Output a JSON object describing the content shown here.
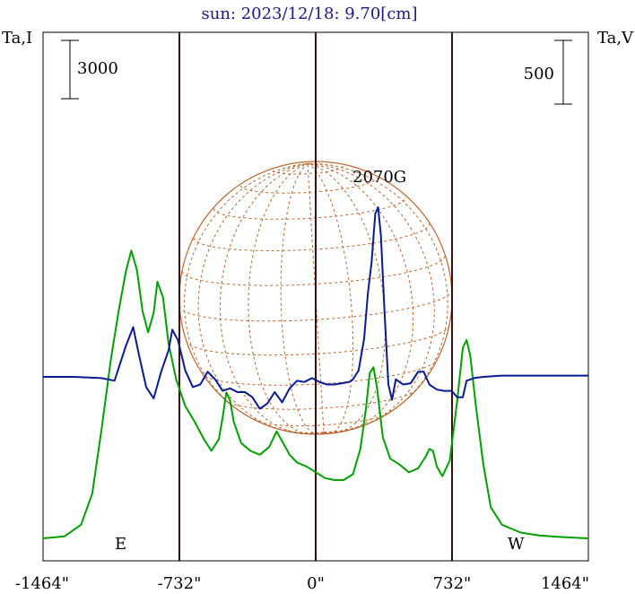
{
  "chart_data": {
    "type": "line",
    "title": "sun: 2023/12/18: 9.70[cm]",
    "ylabel_left": "Ta,I",
    "ylabel_right": "Ta,V",
    "scale_left": "3000",
    "scale_right": "500",
    "xlim": [
      -1464,
      1464
    ],
    "x_ticks": [
      -1464,
      -732,
      0,
      732,
      1464
    ],
    "x_tick_labels": [
      "-1464\"",
      "-732\"",
      "0\"",
      "732\"",
      "1464\""
    ],
    "vlines": [
      -1464,
      -732,
      0,
      732,
      1464
    ],
    "edge_labels": {
      "east": "E",
      "west": "W"
    },
    "annotation": {
      "text": "2070G",
      "x": 520
    },
    "disk": {
      "center_x": 0,
      "radius": 732
    },
    "series": [
      {
        "color": "#00a000",
        "axis": "left",
        "values": [
          [
            -1464,
            0
          ],
          [
            -1350,
            100
          ],
          [
            -1260,
            700
          ],
          [
            -1200,
            2300
          ],
          [
            -1150,
            5600
          ],
          [
            -1100,
            9200
          ],
          [
            -1060,
            11600
          ],
          [
            -1020,
            13700
          ],
          [
            -990,
            14800
          ],
          [
            -960,
            13800
          ],
          [
            -930,
            11700
          ],
          [
            -900,
            10600
          ],
          [
            -870,
            11600
          ],
          [
            -850,
            13200
          ],
          [
            -820,
            12400
          ],
          [
            -790,
            10000
          ],
          [
            -750,
            8200
          ],
          [
            -700,
            6800
          ],
          [
            -650,
            6000
          ],
          [
            -600,
            5100
          ],
          [
            -560,
            4500
          ],
          [
            -520,
            5100
          ],
          [
            -500,
            6200
          ],
          [
            -480,
            7500
          ],
          [
            -460,
            7100
          ],
          [
            -440,
            6000
          ],
          [
            -400,
            4900
          ],
          [
            -350,
            4500
          ],
          [
            -300,
            4300
          ],
          [
            -250,
            4700
          ],
          [
            -210,
            5500
          ],
          [
            -180,
            5000
          ],
          [
            -140,
            4300
          ],
          [
            -100,
            3900
          ],
          [
            -50,
            3700
          ],
          [
            0,
            3400
          ],
          [
            50,
            3100
          ],
          [
            100,
            3000
          ],
          [
            150,
            3000
          ],
          [
            200,
            3300
          ],
          [
            240,
            4600
          ],
          [
            270,
            6700
          ],
          [
            290,
            8500
          ],
          [
            310,
            8800
          ],
          [
            330,
            7700
          ],
          [
            360,
            5200
          ],
          [
            400,
            4100
          ],
          [
            450,
            3800
          ],
          [
            500,
            3400
          ],
          [
            550,
            3600
          ],
          [
            590,
            4200
          ],
          [
            610,
            4600
          ],
          [
            630,
            4500
          ],
          [
            650,
            3700
          ],
          [
            680,
            3200
          ],
          [
            720,
            4000
          ],
          [
            760,
            7100
          ],
          [
            790,
            9800
          ],
          [
            810,
            10200
          ],
          [
            830,
            9400
          ],
          [
            860,
            6800
          ],
          [
            900,
            3800
          ],
          [
            940,
            1600
          ],
          [
            1000,
            700
          ],
          [
            1100,
            300
          ],
          [
            1200,
            150
          ],
          [
            1300,
            80
          ],
          [
            1464,
            0
          ]
        ]
      },
      {
        "color": "#0a1a90",
        "axis": "right",
        "values": [
          [
            -1464,
            0
          ],
          [
            -1300,
            0
          ],
          [
            -1150,
            -10
          ],
          [
            -1080,
            -30
          ],
          [
            -1020,
            240
          ],
          [
            -980,
            390
          ],
          [
            -950,
            180
          ],
          [
            -910,
            -80
          ],
          [
            -870,
            -170
          ],
          [
            -830,
            40
          ],
          [
            -790,
            210
          ],
          [
            -770,
            370
          ],
          [
            -740,
            290
          ],
          [
            -700,
            50
          ],
          [
            -660,
            -80
          ],
          [
            -620,
            -60
          ],
          [
            -580,
            40
          ],
          [
            -540,
            -20
          ],
          [
            -500,
            -110
          ],
          [
            -460,
            -90
          ],
          [
            -420,
            -120
          ],
          [
            -380,
            -120
          ],
          [
            -340,
            -160
          ],
          [
            -300,
            -250
          ],
          [
            -260,
            -210
          ],
          [
            -220,
            -120
          ],
          [
            -180,
            -200
          ],
          [
            -140,
            -90
          ],
          [
            -100,
            -30
          ],
          [
            -60,
            -40
          ],
          [
            -20,
            -10
          ],
          [
            20,
            -40
          ],
          [
            60,
            -60
          ],
          [
            100,
            -60
          ],
          [
            140,
            -50
          ],
          [
            180,
            -40
          ],
          [
            200,
            -20
          ],
          [
            230,
            50
          ],
          [
            260,
            300
          ],
          [
            280,
            650
          ],
          [
            300,
            900
          ],
          [
            320,
            1280
          ],
          [
            335,
            1330
          ],
          [
            350,
            1110
          ],
          [
            370,
            500
          ],
          [
            390,
            -60
          ],
          [
            410,
            -180
          ],
          [
            430,
            -20
          ],
          [
            450,
            -40
          ],
          [
            470,
            -60
          ],
          [
            510,
            -50
          ],
          [
            550,
            40
          ],
          [
            580,
            40
          ],
          [
            610,
            -60
          ],
          [
            650,
            -100
          ],
          [
            690,
            -110
          ],
          [
            730,
            -110
          ],
          [
            760,
            -160
          ],
          [
            790,
            -160
          ],
          [
            810,
            -30
          ],
          [
            850,
            -10
          ],
          [
            900,
            0
          ],
          [
            1000,
            10
          ],
          [
            1464,
            10
          ]
        ]
      }
    ]
  }
}
